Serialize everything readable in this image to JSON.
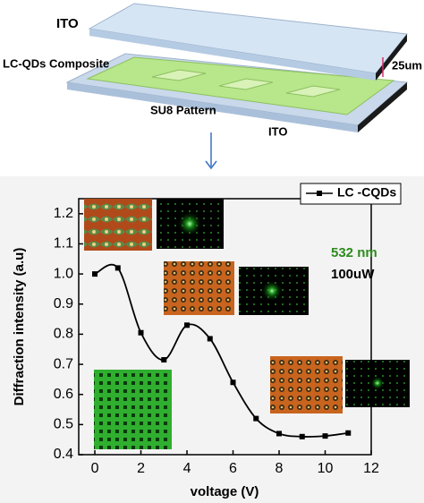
{
  "diagram": {
    "top_label": "ITO",
    "composite_label": "LC-QDs Composite",
    "gap_label": "25um",
    "pattern_label": "SU8 Pattern",
    "bottom_label": "ITO"
  },
  "chart_data": {
    "type": "line",
    "xlabel": "voltage (V)",
    "ylabel": "Diffraction intensity (a.u)",
    "x": [
      0,
      1,
      2,
      3,
      4,
      5,
      6,
      7,
      8,
      9,
      10,
      11
    ],
    "series": [
      {
        "name": "LC -CQDs",
        "color": "#000000",
        "values": [
          1.0,
          1.02,
          0.805,
          0.715,
          0.83,
          0.785,
          0.64,
          0.52,
          0.47,
          0.46,
          0.462,
          0.472
        ]
      }
    ],
    "xlim": [
      -0.7,
      12
    ],
    "ylim": [
      0.4,
      1.25
    ],
    "xticks": [
      0,
      2,
      4,
      6,
      8,
      10,
      12
    ],
    "yticks": [
      0.4,
      0.5,
      0.6,
      0.7,
      0.8,
      0.9,
      {
        "value": 1.0,
        "label": "1.0"
      },
      1.1,
      1.2
    ],
    "legend": "upper right",
    "annotations": [
      {
        "text": "532 nm",
        "color": "#2e8b1e"
      },
      {
        "text": "100uW",
        "color": "#000000"
      }
    ]
  }
}
